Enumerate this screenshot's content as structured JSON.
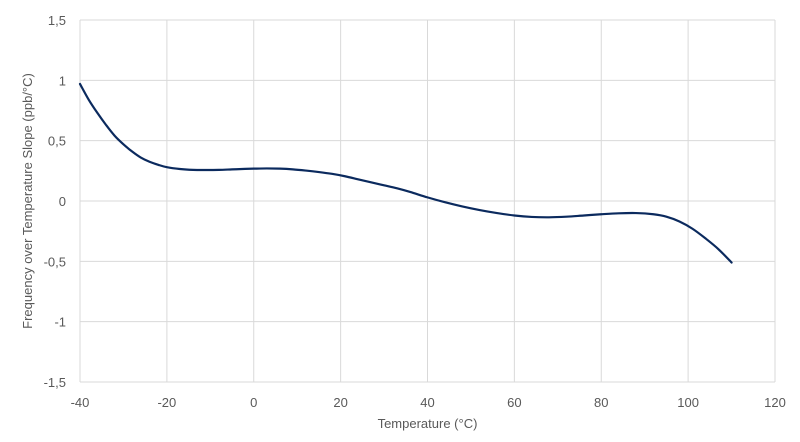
{
  "chart_data": {
    "type": "line",
    "title": "",
    "xlabel": "Temperature (°C)",
    "ylabel": "Frequency over Temperature Slope (ppb/°C)",
    "xlim": [
      -40,
      120
    ],
    "ylim": [
      -1.5,
      1.5
    ],
    "xticks": [
      -40,
      -20,
      0,
      20,
      40,
      60,
      80,
      100,
      120
    ],
    "xtick_labels": [
      "-40",
      "-20",
      "0",
      "20",
      "40",
      "60",
      "80",
      "100",
      "120"
    ],
    "yticks": [
      1.5,
      1,
      0.5,
      0,
      -0.5,
      -1,
      -1.5
    ],
    "ytick_labels": [
      "1,5",
      "1",
      "0,5",
      "0",
      "-0,5",
      "-1",
      "-1,5"
    ],
    "grid": true,
    "legend": "none",
    "series": [
      {
        "color": "#0b2a5e",
        "x": [
          -40,
          -38,
          -36,
          -34,
          -32,
          -30,
          -28,
          -26,
          -24,
          -22,
          -20,
          -17,
          -14,
          -11,
          -8,
          -5,
          -2,
          0,
          3,
          6,
          9,
          12,
          15,
          18,
          21,
          24,
          27,
          30,
          33,
          36,
          40,
          44,
          48,
          52,
          56,
          60,
          64,
          68,
          72,
          76,
          80,
          84,
          88,
          92,
          95,
          98,
          101,
          104,
          107,
          110
        ],
        "y": [
          0.97,
          0.84,
          0.73,
          0.63,
          0.54,
          0.47,
          0.41,
          0.36,
          0.325,
          0.3,
          0.28,
          0.265,
          0.258,
          0.257,
          0.258,
          0.262,
          0.266,
          0.268,
          0.27,
          0.268,
          0.262,
          0.252,
          0.24,
          0.225,
          0.205,
          0.18,
          0.155,
          0.13,
          0.105,
          0.075,
          0.03,
          -0.01,
          -0.045,
          -0.075,
          -0.1,
          -0.12,
          -0.132,
          -0.135,
          -0.13,
          -0.12,
          -0.11,
          -0.102,
          -0.1,
          -0.11,
          -0.13,
          -0.17,
          -0.23,
          -0.31,
          -0.4,
          -0.51
        ]
      }
    ]
  }
}
